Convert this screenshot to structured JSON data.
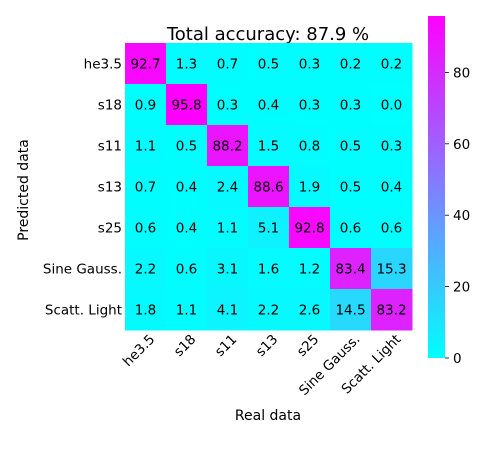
{
  "chart_data": {
    "type": "heatmap",
    "title": "Total accuracy: 87.9 %",
    "xlabel": "Real data",
    "ylabel": "Predicted data",
    "x_categories": [
      "he3.5",
      "s18",
      "s11",
      "s13",
      "s25",
      "Sine Gauss.",
      "Scatt. Light"
    ],
    "y_categories": [
      "he3.5",
      "s18",
      "s11",
      "s13",
      "s25",
      "Sine Gauss.",
      "Scatt. Light"
    ],
    "values": [
      [
        92.7,
        1.3,
        0.7,
        0.5,
        0.3,
        0.2,
        0.2
      ],
      [
        0.9,
        95.8,
        0.3,
        0.4,
        0.3,
        0.3,
        0.0
      ],
      [
        1.1,
        0.5,
        88.2,
        1.5,
        0.8,
        0.5,
        0.3
      ],
      [
        0.7,
        0.4,
        2.4,
        88.6,
        1.9,
        0.5,
        0.4
      ],
      [
        0.6,
        0.4,
        1.1,
        5.1,
        92.8,
        0.6,
        0.6
      ],
      [
        2.2,
        0.6,
        3.1,
        1.6,
        1.2,
        83.4,
        15.3
      ],
      [
        1.8,
        1.1,
        4.1,
        2.2,
        2.6,
        14.5,
        83.2
      ]
    ],
    "colormap": {
      "name": "cool",
      "low_color": "#00ffff",
      "high_color": "#ff00ff",
      "range": [
        0,
        95.8
      ]
    },
    "colorbar": {
      "ticks": [
        0,
        20,
        40,
        60,
        80
      ]
    },
    "grid": false
  }
}
